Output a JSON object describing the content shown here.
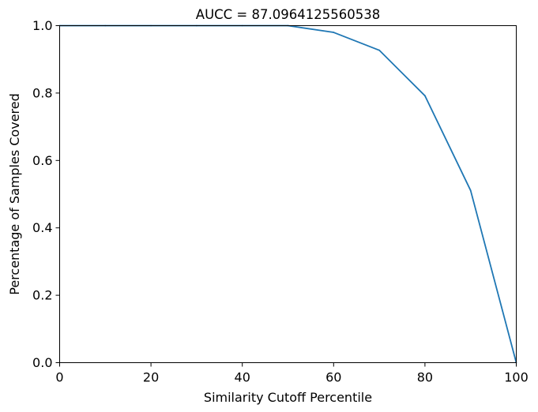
{
  "chart_data": {
    "type": "line",
    "title": "AUCC = 87.0964125560538",
    "xlabel": "Similarity Cutoff Percentile",
    "ylabel": "Percentage of Samples Covered",
    "xlim": [
      0,
      100
    ],
    "ylim": [
      0.0,
      1.0
    ],
    "xticks": [
      0,
      20,
      40,
      60,
      80,
      100
    ],
    "xtick_labels": [
      "0",
      "20",
      "40",
      "60",
      "80",
      "100"
    ],
    "yticks": [
      0.0,
      0.2,
      0.4,
      0.6,
      0.8,
      1.0
    ],
    "ytick_labels": [
      "0.0",
      "0.2",
      "0.4",
      "0.6",
      "0.8",
      "1.0"
    ],
    "grid": false,
    "series": [
      {
        "color": "#1f77b4",
        "x": [
          0,
          10,
          20,
          30,
          40,
          50,
          60,
          70,
          80,
          90,
          100
        ],
        "y": [
          1.0,
          1.0,
          1.0,
          1.0,
          1.0,
          1.0,
          0.98,
          0.927,
          0.792,
          0.511,
          0.0
        ]
      }
    ]
  }
}
